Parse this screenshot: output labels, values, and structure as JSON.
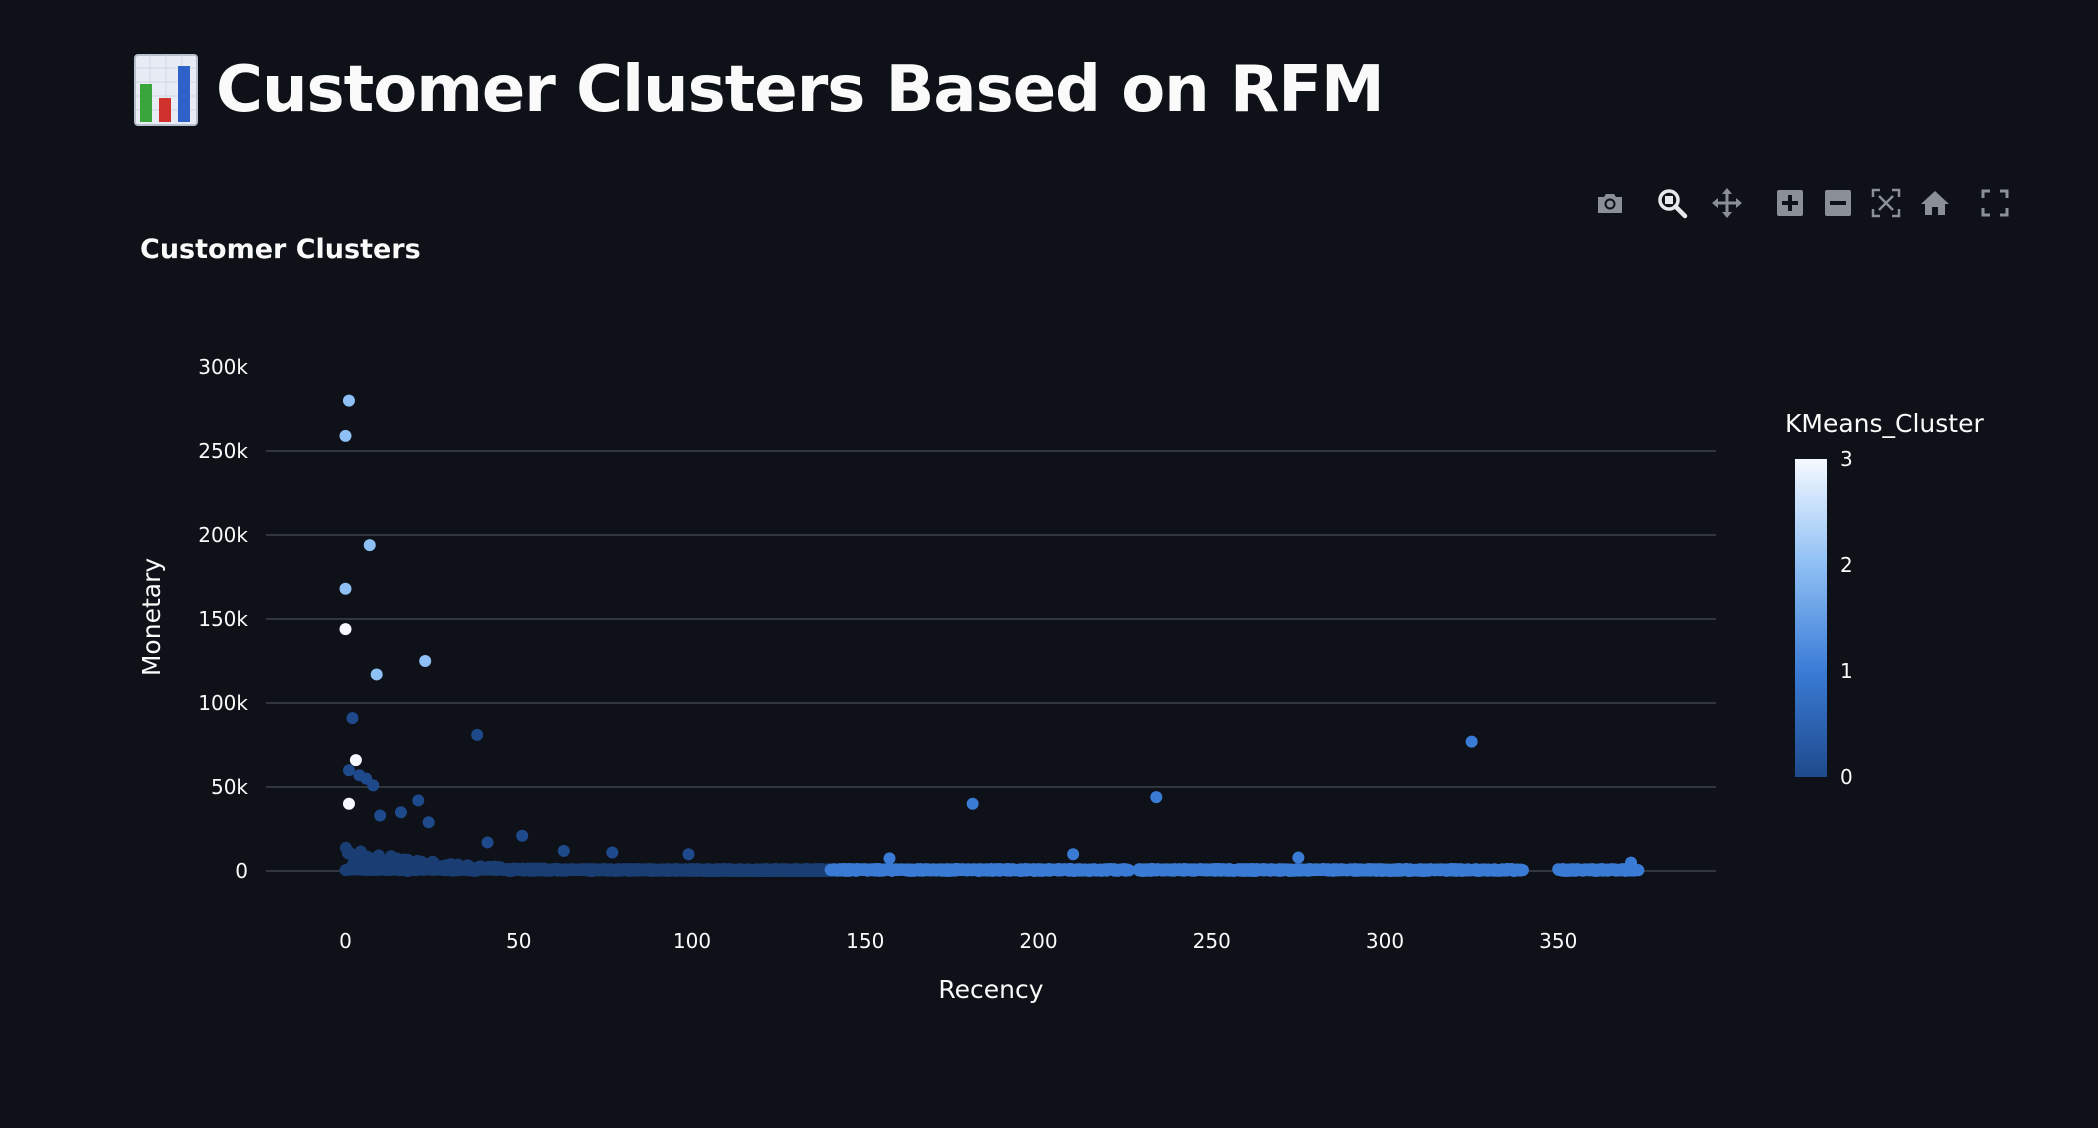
{
  "page": {
    "title": "Customer Clusters Based on RFM",
    "title_icon": "bar-chart-emoji-icon"
  },
  "modebar": {
    "buttons": [
      "camera-icon",
      "zoom-icon",
      "pan-icon",
      "zoom-in-icon",
      "zoom-out-icon",
      "autoscale-icon",
      "reset-axes-home-icon",
      "fullscreen-icon"
    ]
  },
  "colors": {
    "background": "#0e1117",
    "grid": "#31353e",
    "text": "#fafafa",
    "cluster_colorscale": [
      "#1e4a8c",
      "#3a7bd5",
      "#8fc0f5",
      "#f5f9ff"
    ],
    "cluster_0_dense": "#1a3e73"
  },
  "chart_data": {
    "type": "scatter",
    "title": "Customer Clusters",
    "xlabel": "Recency",
    "ylabel": "Monetary",
    "xlim": [
      -30,
      395
    ],
    "ylim": [
      -8000,
      300000
    ],
    "x_ticks": [
      0,
      50,
      100,
      150,
      200,
      250,
      300,
      350
    ],
    "y_ticks": [
      0,
      50000,
      100000,
      150000,
      200000,
      250000,
      300000
    ],
    "y_tick_labels": [
      "0",
      "50k",
      "100k",
      "150k",
      "200k",
      "250k",
      "300k"
    ],
    "grid": true,
    "colorbar": {
      "title": "KMeans_Cluster",
      "range": [
        0,
        3
      ],
      "ticks": [
        0,
        1,
        2,
        3
      ],
      "placement": "right"
    },
    "points": [
      {
        "x": 1,
        "y": 280000,
        "cluster": 2
      },
      {
        "x": 0,
        "y": 259000,
        "cluster": 2
      },
      {
        "x": 7,
        "y": 194000,
        "cluster": 2
      },
      {
        "x": 0,
        "y": 168000,
        "cluster": 2
      },
      {
        "x": 0,
        "y": 144000,
        "cluster": 3
      },
      {
        "x": 23,
        "y": 125000,
        "cluster": 2
      },
      {
        "x": 9,
        "y": 117000,
        "cluster": 2
      },
      {
        "x": 2,
        "y": 91000,
        "cluster": 0
      },
      {
        "x": 38,
        "y": 81000,
        "cluster": 0
      },
      {
        "x": 3,
        "y": 66000,
        "cluster": 3
      },
      {
        "x": 1,
        "y": 60000,
        "cluster": 0
      },
      {
        "x": 4,
        "y": 57000,
        "cluster": 0
      },
      {
        "x": 6,
        "y": 55000,
        "cluster": 0
      },
      {
        "x": 8,
        "y": 51000,
        "cluster": 0
      },
      {
        "x": 21,
        "y": 42000,
        "cluster": 0
      },
      {
        "x": 1,
        "y": 40000,
        "cluster": 3
      },
      {
        "x": 16,
        "y": 35000,
        "cluster": 0
      },
      {
        "x": 10,
        "y": 33000,
        "cluster": 0
      },
      {
        "x": 24,
        "y": 29000,
        "cluster": 0
      },
      {
        "x": 51,
        "y": 21000,
        "cluster": 0
      },
      {
        "x": 41,
        "y": 17000,
        "cluster": 0
      },
      {
        "x": 63,
        "y": 12000,
        "cluster": 0
      },
      {
        "x": 77,
        "y": 11000,
        "cluster": 0
      },
      {
        "x": 99,
        "y": 10000,
        "cluster": 0
      },
      {
        "x": 181,
        "y": 40000,
        "cluster": 1
      },
      {
        "x": 234,
        "y": 44000,
        "cluster": 1
      },
      {
        "x": 325,
        "y": 77000,
        "cluster": 1
      },
      {
        "x": 210,
        "y": 10000,
        "cluster": 1
      },
      {
        "x": 275,
        "y": 8000,
        "cluster": 1
      },
      {
        "x": 157,
        "y": 7500,
        "cluster": 1
      },
      {
        "x": 371,
        "y": 5000,
        "cluster": 1
      }
    ],
    "dense_bands": [
      {
        "x_range": [
          0,
          140
        ],
        "y_max": 15000,
        "cluster": 0
      },
      {
        "x_range": [
          140,
          226
        ],
        "y_max": 4000,
        "cluster": 1
      },
      {
        "x_range": [
          229,
          340
        ],
        "y_max": 3500,
        "cluster": 1
      },
      {
        "x_range": [
          350,
          373
        ],
        "y_max": 3000,
        "cluster": 1
      }
    ]
  }
}
